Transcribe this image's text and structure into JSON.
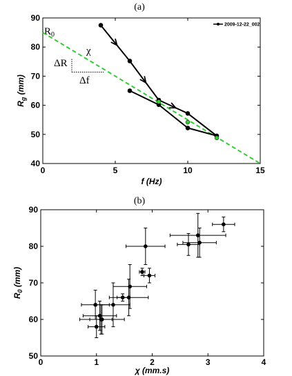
{
  "chart_data": [
    {
      "type": "line",
      "panel_label": "(a)",
      "xlabel": "f (Hz)",
      "ylabel": "R_g (mm)",
      "xlim": [
        0,
        15
      ],
      "ylim": [
        40,
        90
      ],
      "xticks": [
        "0",
        "5",
        "10",
        "15"
      ],
      "yticks": [
        "40",
        "50",
        "60",
        "70",
        "80",
        "90"
      ],
      "grid": false,
      "legend": {
        "position": "top-right",
        "entries": [
          "2009-12-22_002"
        ]
      },
      "series": [
        {
          "name": "2009-12-22_002",
          "x": [
            4,
            6,
            8,
            10,
            12,
            10,
            8,
            6
          ],
          "y": [
            87.5,
            75.2,
            61.8,
            57.2,
            49.5,
            52.2,
            60.2,
            65.0
          ]
        }
      ],
      "fit_line": {
        "x": [
          0,
          15
        ],
        "y": [
          85,
          40
        ]
      },
      "highlight_points": {
        "x": [
          8,
          10,
          12
        ],
        "y": [
          61.2,
          54.2,
          48.8
        ]
      },
      "annotations": {
        "intercept": "R0",
        "slope": "χ",
        "delta_r": "ΔR",
        "delta_f": "Δf"
      }
    },
    {
      "type": "scatter",
      "panel_label": "(b)",
      "xlabel": "χ (mm.s)",
      "ylabel": "R_0 (mm)",
      "xlim": [
        0,
        4
      ],
      "ylim": [
        50,
        90
      ],
      "xticks": [
        "0",
        "1",
        "2",
        "3",
        "4"
      ],
      "yticks": [
        "50",
        "60",
        "70",
        "80",
        "90"
      ],
      "grid": false,
      "points": [
        {
          "x": 1.0,
          "y": 58,
          "xerr": 0.15,
          "yerr": 3
        },
        {
          "x": 0.98,
          "y": 64,
          "xerr": 0.25,
          "yerr": 4
        },
        {
          "x": 1.06,
          "y": 61,
          "xerr": 0.3,
          "yerr": 4
        },
        {
          "x": 1.1,
          "y": 60,
          "xerr": 0.4,
          "yerr": 4
        },
        {
          "x": 1.08,
          "y": 60,
          "xerr": 0.2,
          "yerr": 4
        },
        {
          "x": 1.3,
          "y": 64,
          "xerr": 0.3,
          "yerr": 6
        },
        {
          "x": 1.47,
          "y": 66,
          "xerr": 0.1,
          "yerr": 1
        },
        {
          "x": 1.6,
          "y": 69,
          "xerr": 0.3,
          "yerr": 6
        },
        {
          "x": 1.58,
          "y": 66,
          "xerr": 0.35,
          "yerr": 5
        },
        {
          "x": 1.82,
          "y": 73,
          "xerr": 0.05,
          "yerr": 1
        },
        {
          "x": 1.95,
          "y": 72,
          "xerr": 0.1,
          "yerr": 2
        },
        {
          "x": 1.88,
          "y": 80,
          "xerr": 0.35,
          "yerr": 5
        },
        {
          "x": 2.65,
          "y": 80.5,
          "xerr": 0.2,
          "yerr": 3
        },
        {
          "x": 2.85,
          "y": 81,
          "xerr": 0.3,
          "yerr": 4
        },
        {
          "x": 2.82,
          "y": 83,
          "xerr": 0.5,
          "yerr": 6
        },
        {
          "x": 3.28,
          "y": 86,
          "xerr": 0.2,
          "yerr": 2
        }
      ]
    }
  ]
}
